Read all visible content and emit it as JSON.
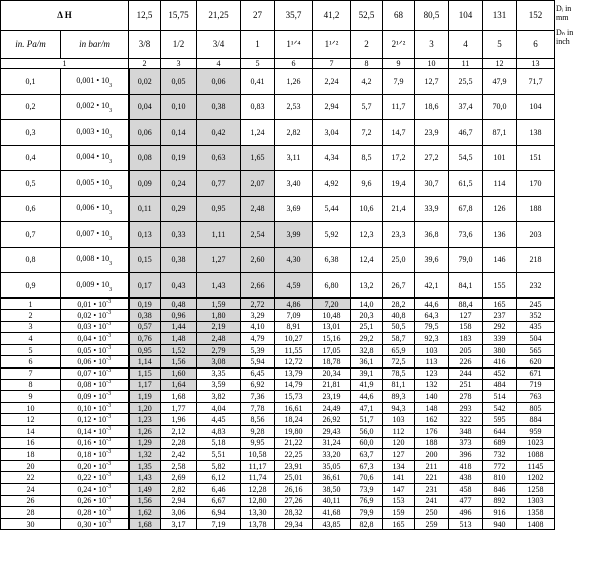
{
  "header": {
    "delta_h": "Δ H",
    "dn_label_top": "Dᵢ in",
    "dn_label_top_unit": "mm",
    "dn_label_bottom": "Dₙ in",
    "dn_label_bottom_unit": "inch",
    "unit_pa": "in. Pa/m",
    "unit_bar": "in bar/m",
    "mm_sizes": [
      "12,5",
      "15,75",
      "21,25",
      "27",
      "35,7",
      "41,2",
      "52,5",
      "68",
      "80,5",
      "104",
      "131",
      "152"
    ],
    "inch_sizes": [
      "3/8",
      "1/2",
      "3/4",
      "1",
      "1¹ᐟ⁴",
      "1¹ᐟ²",
      "2",
      "2¹ᐟ²",
      "3",
      "4",
      "5",
      "6"
    ],
    "column_numbers": [
      "1",
      "2",
      "3",
      "4",
      "5",
      "6",
      "7",
      "8",
      "9",
      "10",
      "11",
      "12",
      "13"
    ]
  },
  "rows": [
    {
      "pa": "0,1",
      "bar": "0,001 • 10",
      "vals": [
        "0,02",
        "0,05",
        "0,06",
        "0,41",
        "1,26",
        "2,24",
        "4,2",
        "7,9",
        "12,7",
        "25,5",
        "47,9",
        "71,7"
      ]
    },
    {
      "pa": "0,2",
      "bar": "0,002 • 10",
      "vals": [
        "0,04",
        "0,10",
        "0,38",
        "0,83",
        "2,53",
        "2,94",
        "5,7",
        "11,7",
        "18,6",
        "37,4",
        "70,0",
        "104"
      ]
    },
    {
      "pa": "0,3",
      "bar": "0,003 • 10",
      "vals": [
        "0,06",
        "0,14",
        "0,42",
        "1,24",
        "2,82",
        "3,04",
        "7,2",
        "14,7",
        "23,9",
        "46,7",
        "87,1",
        "138"
      ]
    },
    {
      "pa": "0,4",
      "bar": "0,004 • 10",
      "vals": [
        "0,08",
        "0,19",
        "0,63",
        "1,65",
        "3,11",
        "4,34",
        "8,5",
        "17,2",
        "27,2",
        "54,5",
        "101",
        "151"
      ]
    },
    {
      "pa": "0,5",
      "bar": "0,005 • 10",
      "vals": [
        "0,09",
        "0,24",
        "0,77",
        "2,07",
        "3,40",
        "4,92",
        "9,6",
        "19,4",
        "30,7",
        "61,5",
        "114",
        "170"
      ]
    },
    {
      "pa": "0,6",
      "bar": "0,006 • 10",
      "vals": [
        "0,11",
        "0,29",
        "0,95",
        "2,48",
        "3,69",
        "5,44",
        "10,6",
        "21,4",
        "33,9",
        "67,8",
        "126",
        "188"
      ]
    },
    {
      "pa": "0,7",
      "bar": "0,007 • 10",
      "vals": [
        "0,13",
        "0,33",
        "1,11",
        "2,54",
        "3,99",
        "5,92",
        "12,3",
        "23,3",
        "36,8",
        "73,6",
        "136",
        "203"
      ]
    },
    {
      "pa": "0,8",
      "bar": "0,008 • 10",
      "vals": [
        "0,15",
        "0,38",
        "1,27",
        "2,60",
        "4,30",
        "6,38",
        "12,4",
        "25,0",
        "39,6",
        "79,0",
        "146",
        "218"
      ]
    },
    {
      "pa": "0,9",
      "bar": "0,009 • 10",
      "vals": [
        "0,17",
        "0,43",
        "1,43",
        "2,66",
        "4,59",
        "6,80",
        "13,2",
        "26,7",
        "42,1",
        "84,1",
        "155",
        "232"
      ]
    },
    {
      "pa": "1",
      "bar": "0,01 • 10",
      "vals": [
        "0,19",
        "0,48",
        "1,59",
        "2,72",
        "4,86",
        "7,20",
        "14,0",
        "28,2",
        "44,6",
        "88,4",
        "165",
        "245"
      ]
    },
    {
      "pa": "2",
      "bar": "0,02 • 10",
      "vals": [
        "0,38",
        "0,96",
        "1,80",
        "3,29",
        "7,09",
        "10,48",
        "20,3",
        "40,8",
        "64,3",
        "127",
        "237",
        "352"
      ]
    },
    {
      "pa": "3",
      "bar": "0,03 • 10",
      "vals": [
        "0,57",
        "1,44",
        "2,19",
        "4,10",
        "8,91",
        "13,01",
        "25,1",
        "50,5",
        "79,5",
        "158",
        "292",
        "435"
      ]
    },
    {
      "pa": "4",
      "bar": "0,04 • 10",
      "vals": [
        "0,76",
        "1,48",
        "2,48",
        "4,79",
        "10,27",
        "15,16",
        "29,2",
        "58,7",
        "92,3",
        "183",
        "339",
        "504"
      ]
    },
    {
      "pa": "5",
      "bar": "0,05 • 10",
      "vals": [
        "0,95",
        "1,52",
        "2,79",
        "5,39",
        "11,55",
        "17,05",
        "32,8",
        "65,9",
        "103",
        "205",
        "380",
        "565"
      ]
    },
    {
      "pa": "6",
      "bar": "0,06 • 10",
      "vals": [
        "1,14",
        "1,56",
        "3,08",
        "5,94",
        "12,72",
        "18,78",
        "36,1",
        "72,5",
        "113",
        "226",
        "416",
        "620"
      ]
    },
    {
      "pa": "7",
      "bar": "0,07 • 10",
      "vals": [
        "1,15",
        "1,60",
        "3,35",
        "6,45",
        "13,79",
        "20,34",
        "39,1",
        "78,5",
        "123",
        "244",
        "452",
        "671"
      ]
    },
    {
      "pa": "8",
      "bar": "0,08 • 10",
      "vals": [
        "1,17",
        "1,64",
        "3,59",
        "6,92",
        "14,79",
        "21,81",
        "41,9",
        "81,1",
        "132",
        "251",
        "484",
        "719"
      ]
    },
    {
      "pa": "9",
      "bar": "0,09 • 10",
      "vals": [
        "1,19",
        "1,68",
        "3,82",
        "7,36",
        "15,73",
        "23,19",
        "44,6",
        "89,3",
        "140",
        "278",
        "514",
        "763"
      ]
    },
    {
      "pa": "10",
      "bar": "0,10 • 10",
      "vals": [
        "1,20",
        "1,77",
        "4,04",
        "7,78",
        "16,61",
        "24,49",
        "47,1",
        "94,3",
        "148",
        "293",
        "542",
        "805"
      ]
    },
    {
      "pa": "12",
      "bar": "0,12 • 10",
      "vals": [
        "1,23",
        "1,96",
        "4,45",
        "8,56",
        "18,24",
        "26,92",
        "51,7",
        "103",
        "162",
        "322",
        "595",
        "884"
      ]
    },
    {
      "pa": "14",
      "bar": "0,14 • 10",
      "vals": [
        "1,26",
        "2,12",
        "4,83",
        "9,28",
        "19,80",
        "29,43",
        "56,0",
        "112",
        "176",
        "348",
        "644",
        "959"
      ]
    },
    {
      "pa": "16",
      "bar": "0,16 • 10",
      "vals": [
        "1,29",
        "2,28",
        "5,18",
        "9,95",
        "21,22",
        "31,24",
        "60,0",
        "120",
        "188",
        "373",
        "689",
        "1023"
      ]
    },
    {
      "pa": "18",
      "bar": "0,18 • 10",
      "vals": [
        "1,32",
        "2,42",
        "5,51",
        "10,58",
        "22,25",
        "33,20",
        "63,7",
        "127",
        "200",
        "396",
        "732",
        "1088"
      ]
    },
    {
      "pa": "20",
      "bar": "0,20 • 10",
      "vals": [
        "1,35",
        "2,58",
        "5,82",
        "11,17",
        "23,91",
        "35,05",
        "67,3",
        "134",
        "211",
        "418",
        "772",
        "1145"
      ]
    },
    {
      "pa": "22",
      "bar": "0,22 • 10",
      "vals": [
        "1,43",
        "2,69",
        "6,12",
        "11,74",
        "25,01",
        "36,61",
        "70,6",
        "141",
        "221",
        "438",
        "810",
        "1202"
      ]
    },
    {
      "pa": "24",
      "bar": "0,24 • 10",
      "vals": [
        "1,49",
        "2,82",
        "6,46",
        "12,28",
        "26,16",
        "38,50",
        "73,9",
        "147",
        "231",
        "458",
        "846",
        "1258"
      ]
    },
    {
      "pa": "26",
      "bar": "0,26 • 10",
      "vals": [
        "1,56",
        "2,94",
        "6,67",
        "12,80",
        "27,26",
        "40,11",
        "76,9",
        "153",
        "241",
        "477",
        "892",
        "1303"
      ]
    },
    {
      "pa": "28",
      "bar": "0,28 • 10",
      "vals": [
        "1,62",
        "3,06",
        "6,94",
        "13,30",
        "28,32",
        "41,68",
        "79,9",
        "159",
        "250",
        "496",
        "916",
        "1358"
      ]
    },
    {
      "pa": "30",
      "bar": "0,30 • 10",
      "vals": [
        "1,68",
        "3,17",
        "7,19",
        "13,78",
        "29,34",
        "43,85",
        "82,8",
        "165",
        "259",
        "513",
        "940",
        "1408"
      ]
    }
  ],
  "exponent": "-3",
  "exponent_small": "3"
}
